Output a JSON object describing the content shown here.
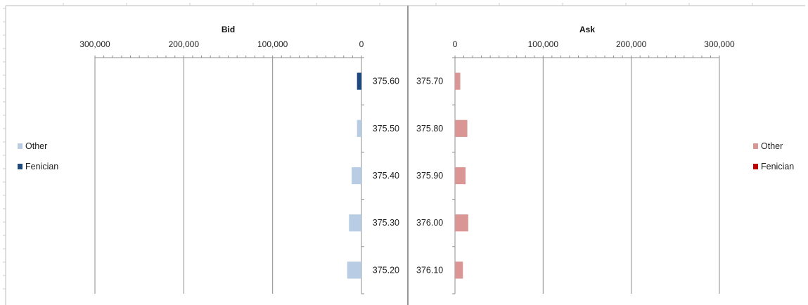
{
  "chart_data": [
    {
      "type": "bar",
      "orientation": "horizontal",
      "direction": "right-to-left",
      "title": "Bid",
      "categories": [
        "375.60",
        "375.50",
        "375.40",
        "375.30",
        "375.20"
      ],
      "series": [
        {
          "name": "Other",
          "color": "#b8cce4",
          "values": [
            0,
            5000,
            11000,
            14000,
            16000
          ]
        },
        {
          "name": "Fenician",
          "color": "#1f497d",
          "values": [
            5000,
            0,
            0,
            0,
            0
          ]
        }
      ],
      "xticks": [
        "300,000",
        "200,000",
        "100,000",
        "0"
      ],
      "xlim": [
        0,
        300000
      ],
      "grid": true,
      "legend_position": "left"
    },
    {
      "type": "bar",
      "orientation": "horizontal",
      "direction": "left-to-right",
      "title": "Ask",
      "categories": [
        "375.70",
        "375.80",
        "375.90",
        "376.00",
        "376.10"
      ],
      "series": [
        {
          "name": "Other",
          "color": "#d99694",
          "values": [
            6000,
            14000,
            12000,
            15000,
            9000
          ]
        },
        {
          "name": "Fenician",
          "color": "#c00000",
          "values": [
            0,
            0,
            0,
            0,
            0
          ]
        }
      ],
      "xticks": [
        "0",
        "100,000",
        "200,000",
        "300,000"
      ],
      "xlim": [
        0,
        300000
      ],
      "grid": true,
      "legend_position": "right"
    }
  ]
}
